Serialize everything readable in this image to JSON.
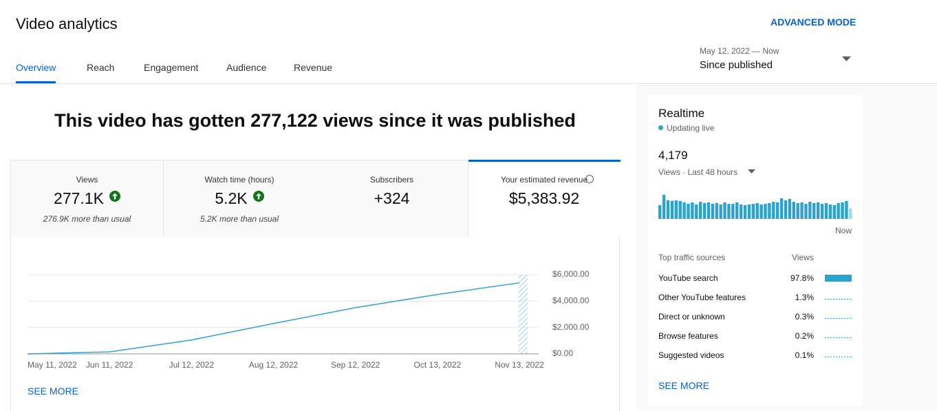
{
  "header": {
    "title": "Video analytics",
    "advanced": "ADVANCED MODE",
    "tabs": [
      "Overview",
      "Reach",
      "Engagement",
      "Audience",
      "Revenue"
    ],
    "date_range": "May 12, 2022 — Now",
    "period": "Since published"
  },
  "headline": "This video has gotten 277,122 views since it was published",
  "metrics": [
    {
      "label": "Views",
      "value": "277.1K",
      "note": "276.9K more than usual",
      "trend": "up"
    },
    {
      "label": "Watch time (hours)",
      "value": "5.2K",
      "note": "5.2K more than usual",
      "trend": "up"
    },
    {
      "label": "Subscribers",
      "value": "+324"
    },
    {
      "label": "Your estimated revenue",
      "value": "$5,383.92"
    }
  ],
  "see_more": "SEE MORE",
  "chart_data": [
    {
      "type": "line",
      "categories": [
        "May 11, 2022",
        "Jun 11, 2022",
        "Jul 12, 2022",
        "Aug 12, 2022",
        "Sep 12, 2022",
        "Oct 13, 2022",
        "Nov 13, 2022"
      ],
      "values": [
        0,
        150,
        1050,
        2300,
        3500,
        4500,
        5383.92
      ],
      "color": "#2ba3cf",
      "ylim": [
        0,
        6000
      ],
      "yticks": [
        {
          "value": 0,
          "label": "$0.00"
        },
        {
          "value": 2000,
          "label": "$2,000.00"
        },
        {
          "value": 4000,
          "label": "$4,000.00"
        },
        {
          "value": 6000,
          "label": "$6,000.00"
        }
      ],
      "grid": true
    },
    {
      "type": "bar",
      "values": [
        67,
        117,
        90,
        88,
        90,
        87,
        80,
        73,
        80,
        70,
        83,
        77,
        80,
        73,
        77,
        70,
        80,
        73,
        73,
        80,
        70,
        67,
        70,
        73,
        77,
        70,
        73,
        77,
        83,
        80,
        100,
        90,
        97,
        83,
        77,
        80,
        73,
        83,
        77,
        80,
        73,
        77,
        70,
        67,
        77,
        80,
        87,
        50
      ],
      "color": "#2ba3cf"
    }
  ],
  "realtime": {
    "title": "Realtime",
    "status": "Updating live",
    "value": "4,179",
    "metric": "Views · Last 48 hours",
    "now": "Now",
    "see_more": "SEE MORE"
  },
  "traffic": {
    "header": "Top traffic sources",
    "views": "Views",
    "rows": [
      [
        "YouTube search",
        "97.8%"
      ],
      [
        "Other YouTube features",
        "1.3%"
      ],
      [
        "Direct or unknown",
        "0.3%"
      ],
      [
        "Browse features",
        "0.2%"
      ],
      [
        "Suggested videos",
        "0.1%"
      ]
    ]
  }
}
